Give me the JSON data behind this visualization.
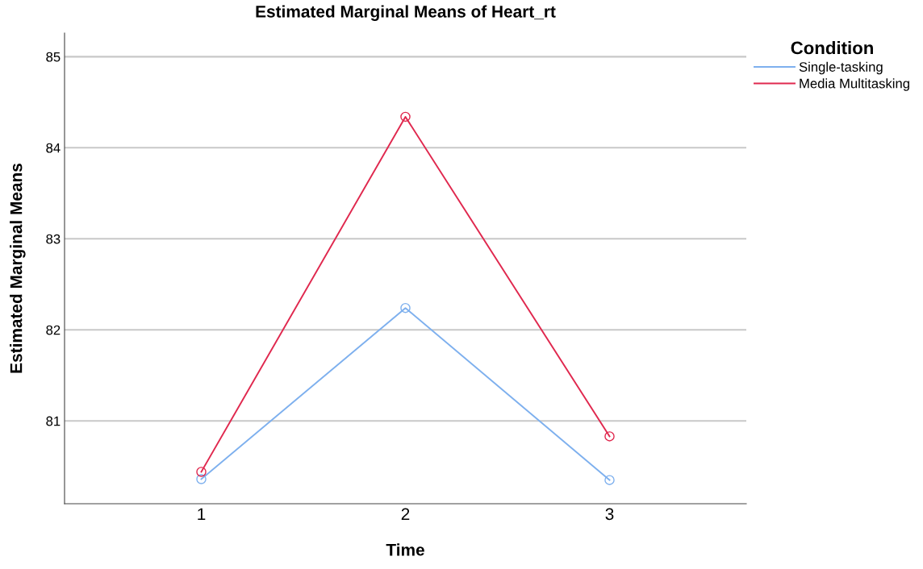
{
  "chart_data": {
    "type": "line",
    "title": "Estimated Marginal Means of Heart_rt",
    "xlabel": "Time",
    "ylabel": "Estimated Marginal Means",
    "legend_title": "Condition",
    "categories": [
      "1",
      "2",
      "3"
    ],
    "series": [
      {
        "name": "Single-tasking",
        "color": "#7eb0ee",
        "values": [
          80.36,
          82.24,
          80.35
        ]
      },
      {
        "name": "Media Multitasking",
        "color": "#e0294f",
        "values": [
          80.44,
          84.34,
          80.83
        ]
      }
    ],
    "ylim": [
      80.09,
      85.26
    ],
    "yticks": [
      81,
      82,
      83,
      84,
      85
    ],
    "grid": "y",
    "legend": "top right",
    "marker": "circle",
    "line_style": "solid"
  }
}
